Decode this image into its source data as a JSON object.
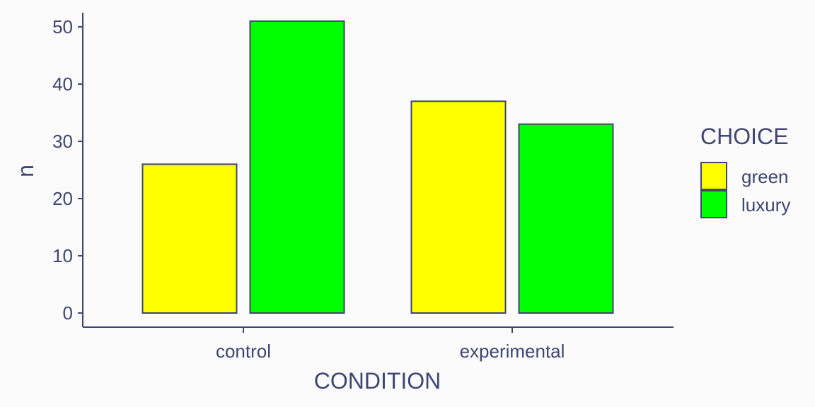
{
  "chart_data": {
    "type": "bar",
    "categories": [
      "control",
      "experimental"
    ],
    "series": [
      {
        "name": "green",
        "values": [
          26,
          37
        ]
      },
      {
        "name": "luxury",
        "values": [
          51,
          33
        ]
      }
    ],
    "xlabel": "CONDITION",
    "ylabel": "n",
    "ylim": [
      0,
      50
    ],
    "yticks": [
      0,
      10,
      20,
      30,
      40,
      50
    ],
    "legend": {
      "title": "CHOICE",
      "position": "right"
    },
    "grid": false
  },
  "colors": {
    "green": "#ffff00",
    "luxury": "#00ff00",
    "outline": "#3f4670",
    "text": "#3f4670",
    "background": "#fbfbfc"
  }
}
